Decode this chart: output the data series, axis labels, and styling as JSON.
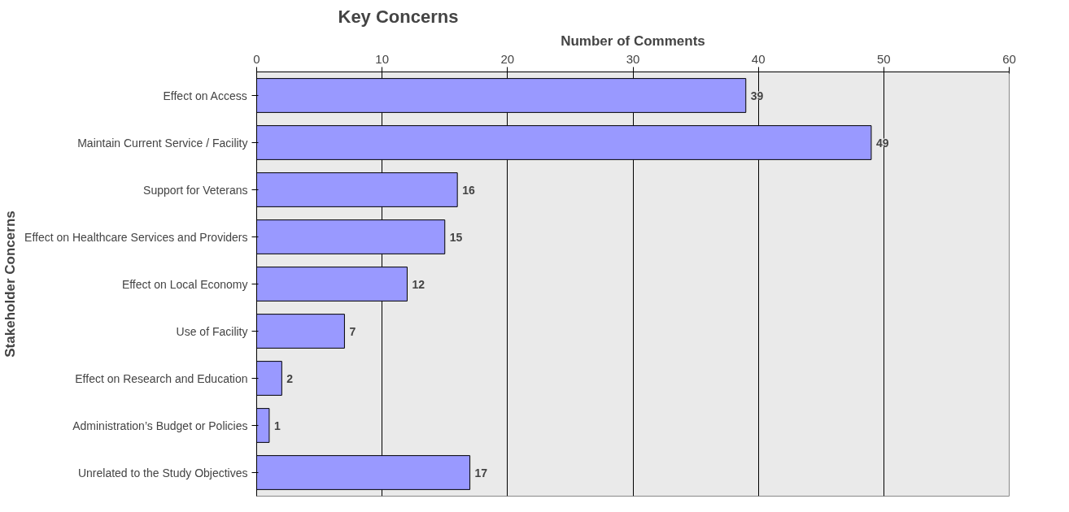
{
  "chart_data": {
    "type": "bar",
    "orientation": "horizontal",
    "title": "Key Concerns",
    "xlabel": "Number of Comments",
    "ylabel": "Stakeholder Concerns",
    "categories": [
      "Effect on Access",
      "Maintain Current Service / Facility",
      "Support for Veterans",
      "Effect on Healthcare Services and Providers",
      "Effect on Local Economy",
      "Use of Facility",
      "Effect on Research and Education",
      "Administration’s Budget or Policies",
      "Unrelated to the Study Objectives"
    ],
    "values": [
      39,
      49,
      16,
      15,
      12,
      7,
      2,
      1,
      17
    ],
    "color": "#9999ff",
    "xlim": [
      0,
      60
    ],
    "xticks": [
      0,
      10,
      20,
      30,
      40,
      50,
      60
    ],
    "grid": "x",
    "data_labels": true
  }
}
